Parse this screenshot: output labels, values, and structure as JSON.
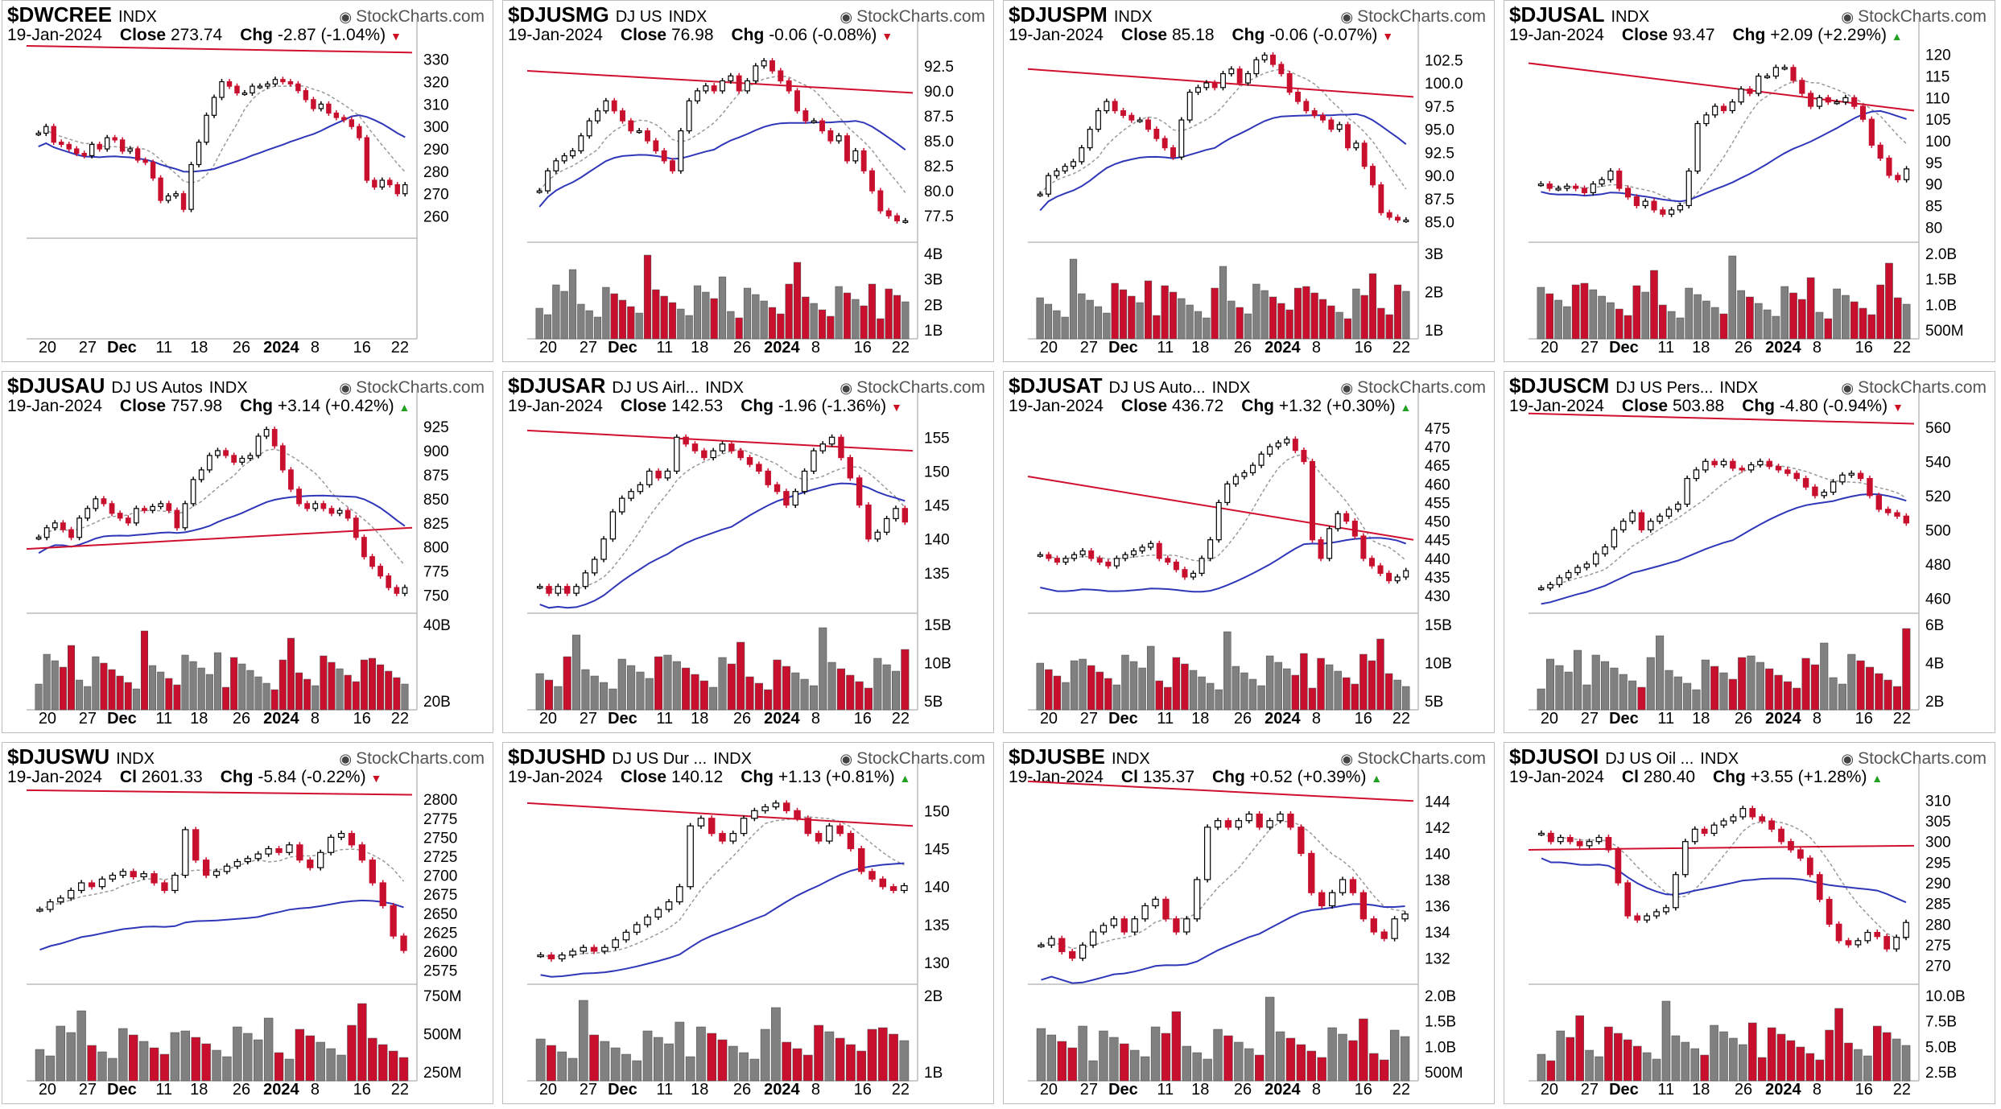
{
  "brand": "StockCharts.com",
  "date": "19-Jan-2024",
  "colors": {
    "up": "#ffffff",
    "down": "#c8102e",
    "upVol": "#808080",
    "downVol": "#c8102e",
    "ma200": "#d0102e",
    "ma50": "#2f37b8",
    "ma20": "#999999"
  },
  "x_labels": [
    "20",
    "27",
    "Dec",
    "11",
    "18",
    "26",
    "2024",
    "8",
    "16",
    "22"
  ],
  "panels": [
    {
      "symbol": "$DWCREE",
      "desc": "",
      "type": "INDX",
      "close_label": "Close",
      "close": "273.74",
      "chg_label": "Chg",
      "chg": "-2.87 (-1.04%)",
      "dir": "down",
      "ylabels": [
        "330",
        "320",
        "310",
        "300",
        "290",
        "280",
        "270",
        "260"
      ],
      "ylim": [
        253,
        336
      ],
      "vol_labels": [],
      "has_volume": false,
      "ma200": [
        336,
        333
      ],
      "ma50_rel": 0.7,
      "closes": [
        297,
        300,
        293,
        292,
        290,
        288,
        287,
        292,
        290,
        295,
        294,
        289,
        290,
        285,
        284,
        277,
        267,
        269,
        270,
        263,
        283,
        293,
        305,
        313,
        320,
        318,
        315,
        315,
        318,
        318,
        319,
        321,
        320,
        319,
        316,
        312,
        308,
        310,
        306,
        304,
        303,
        300,
        295,
        276,
        273,
        276,
        274,
        270,
        274
      ]
    },
    {
      "symbol": "$DJUSMG",
      "desc": "DJ US",
      "type": "INDX",
      "close_label": "Close",
      "close": "76.98",
      "chg_label": "Chg",
      "chg": "-0.06 (-0.08%)",
      "dir": "down",
      "ylabels": [
        "92.5",
        "90.0",
        "87.5",
        "85.0",
        "82.5",
        "80.0",
        "77.5"
      ],
      "ylim": [
        75.5,
        94.5
      ],
      "vol_labels": [
        "4B",
        "3B",
        "2B",
        "1B"
      ],
      "has_volume": true,
      "ma200": [
        92.0,
        89.8
      ],
      "ma50_rel": 0.55,
      "closes": [
        80,
        82,
        83,
        83.5,
        84,
        85.5,
        87,
        88,
        89,
        88,
        87,
        86,
        86,
        85,
        84,
        83,
        82,
        86,
        89,
        90,
        90.5,
        90,
        91,
        91.5,
        90,
        91,
        92.5,
        93,
        92,
        91,
        90,
        88,
        87,
        87,
        86,
        85,
        85.5,
        83,
        84,
        82,
        80,
        78,
        77.5,
        77,
        77
      ]
    },
    {
      "symbol": "$DJUSPM",
      "desc": "",
      "type": "INDX",
      "close_label": "Close",
      "close": "85.18",
      "chg_label": "Chg",
      "chg": "-0.06 (-0.07%)",
      "dir": "down",
      "ylabels": [
        "102.5",
        "100.0",
        "97.5",
        "95.0",
        "92.5",
        "90.0",
        "87.5",
        "85.0"
      ],
      "ylim": [
        83.5,
        104
      ],
      "vol_labels": [
        "3B",
        "2B",
        "1B"
      ],
      "has_volume": true,
      "ma200": [
        101.5,
        98.5
      ],
      "ma50_rel": 0.55,
      "closes": [
        88,
        90,
        90.5,
        91,
        91.5,
        93,
        95,
        97,
        98,
        97,
        96.5,
        96,
        96,
        95,
        94,
        93,
        92,
        96,
        99,
        99.5,
        100,
        99.5,
        101,
        101.5,
        100,
        101,
        102.5,
        103,
        102,
        101,
        99,
        98,
        97,
        96.5,
        96,
        95,
        95.5,
        93,
        93.5,
        91,
        89,
        86,
        85.5,
        85.2,
        85.2
      ]
    },
    {
      "symbol": "$DJUSAL",
      "desc": "",
      "type": "INDX",
      "close_label": "Close",
      "close": "93.47",
      "chg_label": "Chg",
      "chg": "+2.09 (+2.29%)",
      "dir": "up",
      "ylabels": [
        "120",
        "115",
        "110",
        "105",
        "100",
        "95",
        "90",
        "85",
        "80"
      ],
      "ylim": [
        78,
        122
      ],
      "vol_labels": [
        "2.0B",
        "1.5B",
        "1.0B",
        "500M"
      ],
      "has_volume": true,
      "ma200": [
        118,
        107
      ],
      "ma50_rel": 0.55,
      "closes": [
        90,
        89,
        89,
        89.5,
        89,
        88,
        90,
        91,
        93,
        89,
        87,
        85,
        86,
        84,
        83,
        84,
        85,
        93,
        104,
        106,
        108,
        107,
        109,
        112,
        111,
        115,
        115,
        117,
        117,
        114,
        111,
        108,
        110,
        109,
        109,
        110,
        108,
        105,
        99,
        96,
        92,
        91,
        93.5
      ]
    },
    {
      "symbol": "$DJUSAU",
      "desc": "DJ US Autos",
      "type": "INDX",
      "close_label": "Close",
      "close": "757.98",
      "chg_label": "Chg",
      "chg": "+3.14 (+0.42%)",
      "dir": "up",
      "ylabels": [
        "925",
        "900",
        "875",
        "850",
        "825",
        "800",
        "775",
        "750"
      ],
      "ylim": [
        738,
        935
      ],
      "vol_labels": [
        "40B",
        "20B"
      ],
      "has_volume": true,
      "ma200": [
        798,
        820
      ],
      "ma50_rel": 0.5,
      "closes": [
        810,
        820,
        825,
        818,
        810,
        830,
        840,
        850,
        845,
        835,
        830,
        825,
        840,
        838,
        842,
        845,
        838,
        820,
        845,
        870,
        880,
        895,
        900,
        895,
        888,
        892,
        895,
        915,
        922,
        905,
        880,
        860,
        845,
        840,
        845,
        840,
        835,
        838,
        830,
        810,
        790,
        780,
        770,
        758,
        752,
        758
      ]
    },
    {
      "symbol": "$DJUSAR",
      "desc": "DJ US Airl...",
      "type": "INDX",
      "close_label": "Close",
      "close": "142.53",
      "chg_label": "Chg",
      "chg": "-1.96 (-1.36%)",
      "dir": "down",
      "ylabels": [
        "155",
        "150",
        "145",
        "140",
        "135"
      ],
      "ylim": [
        130,
        158
      ],
      "vol_labels": [
        "15B",
        "10B",
        "5B"
      ],
      "has_volume": true,
      "ma200": [
        156,
        153
      ],
      "ma50_rel": 0.45,
      "closes": [
        133,
        132,
        133,
        132,
        133,
        135,
        137,
        140,
        144,
        146,
        147,
        148,
        150,
        149,
        150,
        155,
        154,
        153,
        152,
        153,
        154,
        153,
        152,
        151,
        150,
        148,
        147,
        145,
        147,
        150,
        153,
        154,
        155,
        152,
        149,
        145,
        140,
        141,
        143,
        144.5,
        142.5
      ]
    },
    {
      "symbol": "$DJUSAT",
      "desc": "DJ US Auto...",
      "type": "INDX",
      "close_label": "Close",
      "close": "436.72",
      "chg_label": "Chg",
      "chg": "+1.32 (+0.30%)",
      "dir": "up",
      "ylabels": [
        "475",
        "470",
        "465",
        "460",
        "455",
        "450",
        "445",
        "440",
        "435",
        "430"
      ],
      "ylim": [
        427,
        478
      ],
      "vol_labels": [
        "15B",
        "10B",
        "5B"
      ],
      "has_volume": true,
      "ma200": [
        462,
        445
      ],
      "ma50_rel": 0.45,
      "closes": [
        441,
        440,
        439,
        440,
        441,
        442,
        440,
        439,
        438,
        440,
        441,
        442,
        443,
        444,
        440,
        439,
        437,
        435,
        436,
        440,
        445,
        455,
        460,
        462,
        463,
        465,
        468,
        470,
        471,
        472,
        469,
        466,
        445,
        440,
        448,
        452,
        450,
        446,
        440,
        438,
        436,
        434,
        435,
        436.7
      ]
    },
    {
      "symbol": "$DJUSCM",
      "desc": "DJ US Pers...",
      "type": "INDX",
      "close_label": "Close",
      "close": "503.88",
      "chg_label": "Chg",
      "chg": "-4.80 (-0.94%)",
      "dir": "down",
      "ylabels": [
        "560",
        "540",
        "520",
        "500",
        "480",
        "460"
      ],
      "ylim": [
        455,
        566
      ],
      "vol_labels": [
        "6B",
        "4B",
        "2B"
      ],
      "has_volume": true,
      "ma200": [
        568,
        562
      ],
      "ma50_rel": 0.4,
      "closes": [
        466,
        468,
        472,
        475,
        478,
        480,
        486,
        490,
        500,
        505,
        510,
        500,
        505,
        508,
        512,
        515,
        530,
        535,
        540,
        538,
        540,
        536,
        535,
        538,
        540,
        537,
        535,
        533,
        530,
        525,
        520,
        522,
        528,
        532,
        533,
        530,
        520,
        512,
        510,
        508,
        504
      ]
    },
    {
      "symbol": "$DJUSWU",
      "desc": "",
      "type": "INDX",
      "close_label": "Cl",
      "close": "2601.33",
      "chg_label": "Chg",
      "chg": "-5.84 (-0.22%)",
      "dir": "down",
      "ylabels": [
        "2800",
        "2775",
        "2750",
        "2725",
        "2700",
        "2675",
        "2650",
        "2625",
        "2600",
        "2575"
      ],
      "ylim": [
        2565,
        2815
      ],
      "vol_labels": [
        "750M",
        "500M",
        "250M"
      ],
      "has_volume": true,
      "ma200": [
        2812,
        2806
      ],
      "ma50_rel": 0.4,
      "closes": [
        2655,
        2665,
        2670,
        2680,
        2690,
        2685,
        2695,
        2700,
        2705,
        2698,
        2702,
        2690,
        2680,
        2700,
        2760,
        2720,
        2700,
        2705,
        2712,
        2718,
        2722,
        2728,
        2735,
        2730,
        2740,
        2720,
        2710,
        2730,
        2750,
        2755,
        2740,
        2720,
        2690,
        2660,
        2620,
        2601
      ]
    },
    {
      "symbol": "$DJUSHD",
      "desc": "DJ US Dur ...",
      "type": "INDX",
      "close_label": "Close",
      "close": "140.12",
      "chg_label": "Chg",
      "chg": "+1.13 (+0.81%)",
      "dir": "up",
      "ylabels": [
        "150",
        "145",
        "140",
        "135",
        "130"
      ],
      "ylim": [
        128,
        153
      ],
      "vol_labels": [
        "2B",
        "1B"
      ],
      "has_volume": true,
      "ma200": [
        151,
        148
      ],
      "ma50_rel": 0.45,
      "closes": [
        131,
        130.5,
        131,
        131.5,
        132,
        131.5,
        132,
        133,
        134,
        135,
        136,
        137,
        138,
        140,
        148,
        149,
        147,
        146,
        147,
        149,
        150,
        150.5,
        151,
        150,
        149,
        147,
        146,
        148,
        147,
        145,
        142,
        141,
        140,
        139.5,
        140.12
      ]
    },
    {
      "symbol": "$DJUSBE",
      "desc": "",
      "type": "INDX",
      "close_label": "Cl",
      "close": "135.37",
      "chg_label": "Chg",
      "chg": "+0.52 (+0.39%)",
      "dir": "up",
      "ylabels": [
        "144",
        "142",
        "140",
        "138",
        "136",
        "134",
        "132"
      ],
      "ylim": [
        130.5,
        145
      ],
      "vol_labels": [
        "2.0B",
        "1.5B",
        "1.0B",
        "500M"
      ],
      "has_volume": true,
      "ma200": [
        145.5,
        144
      ],
      "ma50_rel": 0.4,
      "closes": [
        133,
        133.5,
        132.5,
        132,
        133,
        134,
        134.5,
        135,
        134,
        135,
        136,
        136.5,
        135,
        134,
        135,
        138,
        142,
        142.5,
        142,
        142.5,
        143,
        142,
        142.5,
        143,
        142,
        140,
        137,
        136,
        137,
        138,
        137,
        135,
        134,
        133.5,
        135,
        135.37
      ]
    },
    {
      "symbol": "$DJUSOI",
      "desc": "DJ US Oil ...",
      "type": "INDX",
      "close_label": "Cl",
      "close": "280.40",
      "chg_label": "Chg",
      "chg": "+3.55 (+1.28%)",
      "dir": "up",
      "ylabels": [
        "310",
        "305",
        "300",
        "295",
        "290",
        "285",
        "280",
        "275",
        "270"
      ],
      "ylim": [
        267,
        313
      ],
      "vol_labels": [
        "10.0B",
        "7.5B",
        "5.0B",
        "2.5B"
      ],
      "has_volume": true,
      "ma200": [
        298,
        299
      ],
      "ma50_rel": 0.6,
      "closes": [
        302,
        300,
        301,
        300,
        299,
        300,
        301,
        298,
        290,
        282,
        281,
        282,
        283,
        284,
        292,
        300,
        303,
        302,
        304,
        305,
        306,
        308,
        306,
        305,
        303,
        300,
        298,
        296,
        292,
        286,
        280,
        276,
        275,
        276,
        278,
        277,
        274,
        276.8,
        280.4
      ]
    }
  ]
}
